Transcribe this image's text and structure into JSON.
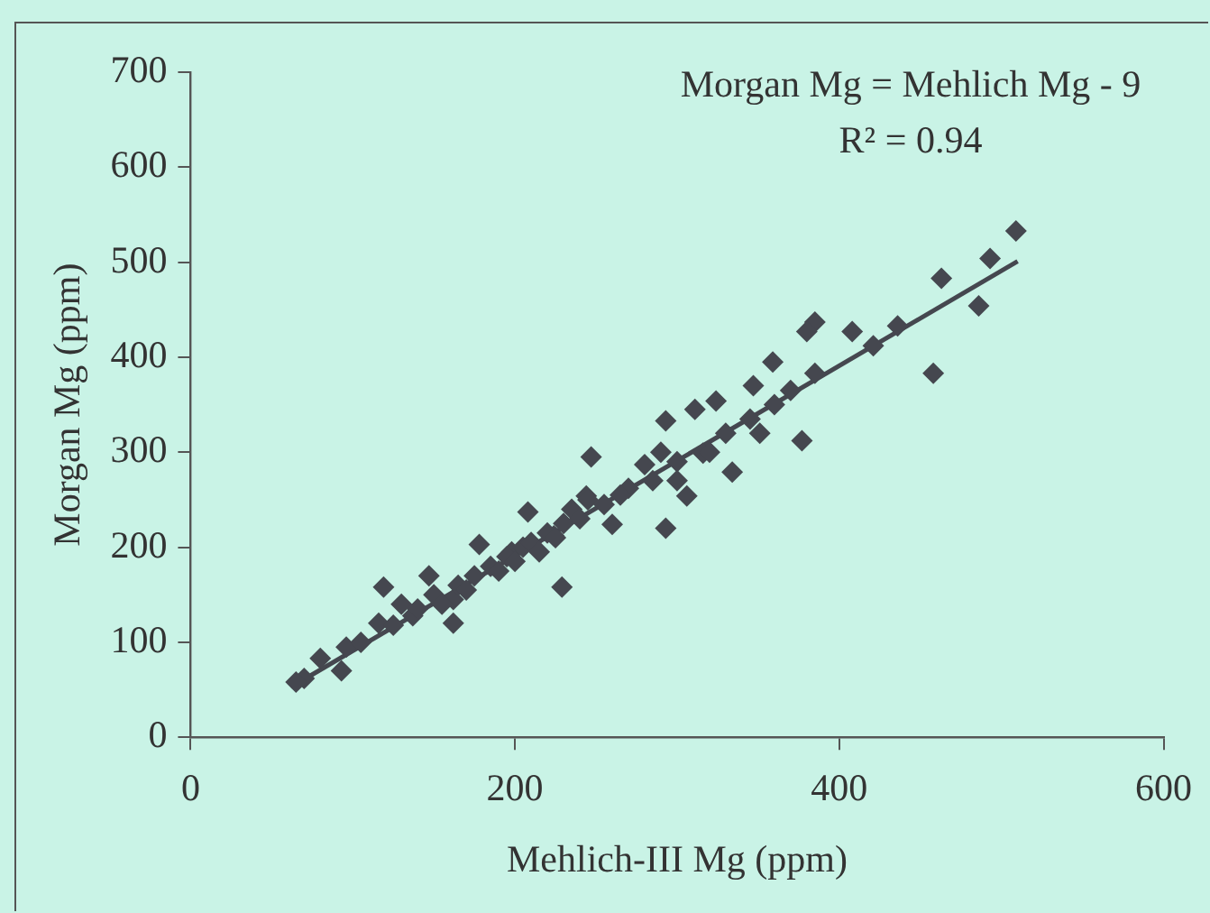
{
  "chart_data": {
    "type": "scatter",
    "xlabel": "Mehlich-III Mg (ppm)",
    "ylabel": "Morgan Mg (ppm)",
    "annotations": [
      "Morgan Mg = Mehlich Mg - 9",
      "R² = 0.94"
    ],
    "xlim": [
      0,
      600
    ],
    "xticks": [
      0,
      200,
      400,
      600
    ],
    "ylim": [
      0,
      700
    ],
    "yticks": [
      0,
      100,
      200,
      300,
      400,
      500,
      600,
      700
    ],
    "grid": false,
    "legend": false,
    "marker": "diamond",
    "series": [
      {
        "color": "#45474f",
        "x": [
          509,
          493,
          486,
          463,
          458,
          436,
          421,
          408,
          385,
          380,
          377,
          385,
          359,
          347,
          351,
          334,
          324,
          311,
          293,
          293,
          306,
          316,
          280,
          270,
          247,
          260,
          229,
          208,
          244,
          224,
          198,
          178,
          162,
          162,
          147,
          119,
          116,
          137,
          96,
          93,
          80,
          70,
          65,
          105,
          125,
          130,
          140,
          150,
          155,
          165,
          170,
          175,
          185,
          190,
          195,
          200,
          205,
          210,
          215,
          220,
          225,
          230,
          235,
          240,
          245,
          255,
          265,
          285,
          300,
          320,
          330,
          345,
          360,
          370,
          300,
          290
        ],
        "values": [
          533,
          504,
          454,
          483,
          383,
          433,
          412,
          427,
          437,
          427,
          312,
          383,
          395,
          370,
          320,
          279,
          354,
          345,
          333,
          220,
          254,
          299,
          287,
          262,
          295,
          224,
          158,
          237,
          254,
          212,
          195,
          203,
          145,
          120,
          170,
          158,
          120,
          128,
          95,
          70,
          83,
          62,
          58,
          100,
          118,
          140,
          135,
          150,
          140,
          160,
          155,
          170,
          180,
          175,
          190,
          185,
          200,
          205,
          195,
          215,
          210,
          225,
          240,
          230,
          250,
          245,
          255,
          270,
          290,
          300,
          320,
          335,
          350,
          365,
          270,
          300
        ]
      },
      {
        "type": "line",
        "color": "#45474f",
        "marker": "none",
        "x": [
          65,
          510
        ],
        "values": [
          56,
          501
        ]
      }
    ]
  }
}
